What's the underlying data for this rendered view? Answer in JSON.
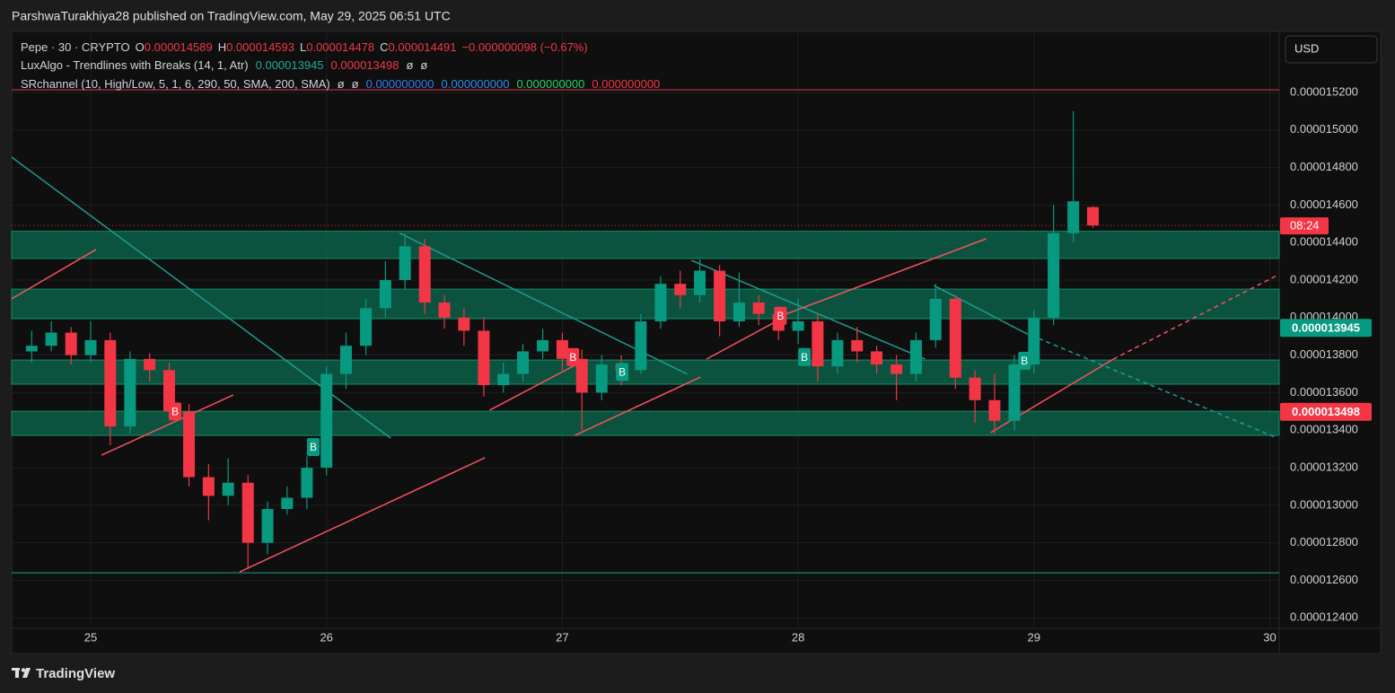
{
  "header": {
    "published": "ParshwaTurakhiya28 published on TradingView.com, May 29, 2025 06:51 UTC",
    "currency": "USD",
    "brand": "TradingView"
  },
  "legend": {
    "symbol": "Pepe · 30 · CRYPTO",
    "ohlc": [
      {
        "key": "O",
        "value": "0.000014589"
      },
      {
        "key": "H",
        "value": "0.000014593"
      },
      {
        "key": "L",
        "value": "0.000014478"
      },
      {
        "key": "C",
        "value": "0.000014491"
      }
    ],
    "change": "−0.000000098 (−0.67%)",
    "trendlines_name": "LuxAlgo - Trendlines with Breaks (14, 1, Atr)",
    "trendlines_empty": [
      "ø",
      "ø"
    ],
    "sr_name": "SRchannel (10, High/Low, 5, 1, 6, 290, 50, SMA, 200, SMA)",
    "sr_empty": [
      "ø",
      "ø"
    ],
    "sr_values": [
      {
        "text": "0.000000000",
        "color": "#2f7ff0"
      },
      {
        "text": "0.000000000",
        "color": "#2f8cf0"
      },
      {
        "text": "0.000000000",
        "color": "#1fd36b"
      },
      {
        "text": "0.000000000",
        "color": "#f23645"
      }
    ]
  },
  "chart_data": {
    "type": "candlestick",
    "up_color": "#089981",
    "down_color": "#f23645",
    "grid": true,
    "x": [
      24.75,
      24.833,
      24.917,
      25,
      25.083,
      25.167,
      25.25,
      25.333,
      25.417,
      25.5,
      25.583,
      25.667,
      25.75,
      25.833,
      25.917,
      26,
      26.083,
      26.167,
      26.25,
      26.333,
      26.417,
      26.5,
      26.583,
      26.667,
      26.75,
      26.833,
      26.917,
      27,
      27.083,
      27.167,
      27.25,
      27.333,
      27.417,
      27.5,
      27.583,
      27.667,
      27.75,
      27.833,
      27.917,
      28,
      28.083,
      28.167,
      28.25,
      28.333,
      28.417,
      28.5,
      28.583,
      28.667,
      28.75,
      28.833,
      28.917,
      29,
      29.083,
      29.167,
      29.25
    ],
    "open": [
      1.382e-05,
      1.385e-05,
      1.392e-05,
      1.38e-05,
      1.388e-05,
      1.342e-05,
      1.378e-05,
      1.372e-05,
      1.35e-05,
      1.315e-05,
      1.305e-05,
      1.312e-05,
      1.28e-05,
      1.298e-05,
      1.304e-05,
      1.32e-05,
      1.37e-05,
      1.385e-05,
      1.405e-05,
      1.42e-05,
      1.438e-05,
      1.408e-05,
      1.4e-05,
      1.393e-05,
      1.364e-05,
      1.37e-05,
      1.382e-05,
      1.388e-05,
      1.378e-05,
      1.36e-05,
      1.375e-05,
      1.372e-05,
      1.398e-05,
      1.418e-05,
      1.412e-05,
      1.425e-05,
      1.398e-05,
      1.408e-05,
      1.402e-05,
      1.393e-05,
      1.398e-05,
      1.374e-05,
      1.388e-05,
      1.382e-05,
      1.375e-05,
      1.37e-05,
      1.388e-05,
      1.41e-05,
      1.368e-05,
      1.356e-05,
      1.345e-05,
      1.375e-05,
      1.4e-05,
      1.445e-05,
      1.4589e-05
    ],
    "high": [
      1.393e-05,
      1.398e-05,
      1.395e-05,
      1.398e-05,
      1.392e-05,
      1.382e-05,
      1.381e-05,
      1.376e-05,
      1.354e-05,
      1.322e-05,
      1.325e-05,
      1.316e-05,
      1.302e-05,
      1.31e-05,
      1.326e-05,
      1.374e-05,
      1.392e-05,
      1.41e-05,
      1.43e-05,
      1.445e-05,
      1.442e-05,
      1.412e-05,
      1.405e-05,
      1.4e-05,
      1.376e-05,
      1.386e-05,
      1.394e-05,
      1.392e-05,
      1.383e-05,
      1.38e-05,
      1.38e-05,
      1.402e-05,
      1.422e-05,
      1.425e-05,
      1.431e-05,
      1.428e-05,
      1.424e-05,
      1.412e-05,
      1.406e-05,
      1.41e-05,
      1.402e-05,
      1.392e-05,
      1.395e-05,
      1.385e-05,
      1.38e-05,
      1.392e-05,
      1.418e-05,
      1.412e-05,
      1.372e-05,
      1.37e-05,
      1.38e-05,
      1.404e-05,
      1.46e-05,
      1.51e-05,
      1.4593e-05
    ],
    "low": [
      1.376e-05,
      1.382e-05,
      1.375e-05,
      1.376e-05,
      1.332e-05,
      1.338e-05,
      1.366e-05,
      1.346e-05,
      1.31e-05,
      1.292e-05,
      1.3e-05,
      1.266e-05,
      1.274e-05,
      1.295e-05,
      1.298e-05,
      1.316e-05,
      1.362e-05,
      1.38e-05,
      1.4e-05,
      1.415e-05,
      1.402e-05,
      1.394e-05,
      1.385e-05,
      1.358e-05,
      1.36e-05,
      1.366e-05,
      1.378e-05,
      1.372e-05,
      1.34e-05,
      1.356e-05,
      1.364e-05,
      1.37e-05,
      1.394e-05,
      1.405e-05,
      1.408e-05,
      1.39e-05,
      1.395e-05,
      1.396e-05,
      1.388e-05,
      1.386e-05,
      1.366e-05,
      1.37e-05,
      1.376e-05,
      1.37e-05,
      1.356e-05,
      1.366e-05,
      1.384e-05,
      1.362e-05,
      1.344e-05,
      1.338e-05,
      1.34e-05,
      1.37e-05,
      1.396e-05,
      1.44e-05,
      1.4478e-05
    ],
    "close": [
      1.385e-05,
      1.392e-05,
      1.38e-05,
      1.388e-05,
      1.342e-05,
      1.378e-05,
      1.372e-05,
      1.35e-05,
      1.315e-05,
      1.305e-05,
      1.312e-05,
      1.28e-05,
      1.298e-05,
      1.304e-05,
      1.32e-05,
      1.37e-05,
      1.385e-05,
      1.405e-05,
      1.42e-05,
      1.438e-05,
      1.408e-05,
      1.4e-05,
      1.393e-05,
      1.364e-05,
      1.37e-05,
      1.382e-05,
      1.388e-05,
      1.378e-05,
      1.36e-05,
      1.375e-05,
      1.372e-05,
      1.398e-05,
      1.418e-05,
      1.412e-05,
      1.425e-05,
      1.398e-05,
      1.408e-05,
      1.402e-05,
      1.393e-05,
      1.398e-05,
      1.374e-05,
      1.388e-05,
      1.382e-05,
      1.375e-05,
      1.37e-05,
      1.388e-05,
      1.41e-05,
      1.368e-05,
      1.356e-05,
      1.345e-05,
      1.375e-05,
      1.4e-05,
      1.445e-05,
      1.462e-05,
      1.4491e-05
    ],
    "xlim": [
      24.665,
      30.04
    ],
    "ylim": [
      1.2344e-05,
      1.5525e-05
    ],
    "xticks": [
      25,
      26,
      27,
      28,
      29,
      30
    ],
    "yticks": [
      {
        "value": 1.52e-05,
        "label": "0.000015200"
      },
      {
        "value": 1.5e-05,
        "label": "0.000015000"
      },
      {
        "value": 1.48e-05,
        "label": "0.000014800"
      },
      {
        "value": 1.46e-05,
        "label": "0.000014600"
      },
      {
        "value": 1.44e-05,
        "label": "0.000014400"
      },
      {
        "value": 1.42e-05,
        "label": "0.000014200"
      },
      {
        "value": 1.4e-05,
        "label": "0.000014000"
      },
      {
        "value": 1.38e-05,
        "label": "0.000013800"
      },
      {
        "value": 1.36e-05,
        "label": "0.000013600"
      },
      {
        "value": 1.34e-05,
        "label": "0.000013400"
      },
      {
        "value": 1.32e-05,
        "label": "0.000013200"
      },
      {
        "value": 1.3e-05,
        "label": "0.000013000"
      },
      {
        "value": 1.28e-05,
        "label": "0.000012800"
      },
      {
        "value": 1.26e-05,
        "label": "0.000012600"
      },
      {
        "value": 1.24e-05,
        "label": "0.000012400"
      }
    ],
    "zones": [
      {
        "top": 1.446e-05,
        "bottom": 1.4315e-05
      },
      {
        "top": 1.4152e-05,
        "bottom": 1.3994e-05
      },
      {
        "top": 1.3774e-05,
        "bottom": 1.3645e-05
      },
      {
        "top": 1.3501e-05,
        "bottom": 1.3372e-05
      }
    ],
    "zone_color": "#0b6b4f",
    "levels": [
      {
        "value": 1.5214e-05,
        "color": "#b2323c"
      },
      {
        "value": 1.264e-05,
        "color": "#0d8a6a"
      }
    ],
    "trendlines": [
      {
        "x1": 24.665,
        "y1": 1.4855e-05,
        "x2": 26.272,
        "y2": 1.3358e-05,
        "color": "#1f9c92",
        "style": "solid"
      },
      {
        "x1": 26.31,
        "y1": 1.445e-05,
        "x2": 27.529,
        "y2": 1.3699e-05,
        "color": "#1f9c92",
        "style": "solid"
      },
      {
        "x1": 27.548,
        "y1": 1.4305e-05,
        "x2": 28.538,
        "y2": 1.3779e-05,
        "color": "#1f9c92",
        "style": "solid"
      },
      {
        "x1": 28.576,
        "y1": 1.4171e-05,
        "x2": 28.957,
        "y2": 1.3922e-05,
        "color": "#1f9c92",
        "style": "solid"
      },
      {
        "x1": 28.957,
        "y1": 1.3922e-05,
        "x2": 30.023,
        "y2": 1.3363e-05,
        "color": "#1f9c92",
        "style": "dashed"
      },
      {
        "x1": 24.665,
        "y1": 1.41e-05,
        "x2": 25.023,
        "y2": 1.4363e-05,
        "color": "#f7525f",
        "style": "solid"
      },
      {
        "x1": 25.046,
        "y1": 1.3267e-05,
        "x2": 25.605,
        "y2": 1.3588e-05,
        "color": "#f7525f",
        "style": "solid"
      },
      {
        "x1": 25.632,
        "y1": 1.2645e-05,
        "x2": 26.672,
        "y2": 1.3253e-05,
        "color": "#f7525f",
        "style": "solid"
      },
      {
        "x1": 26.691,
        "y1": 1.3506e-05,
        "x2": 27.053,
        "y2": 1.3746e-05,
        "color": "#f7525f",
        "style": "solid"
      },
      {
        "x1": 27.053,
        "y1": 1.3372e-05,
        "x2": 27.586,
        "y2": 1.3683e-05,
        "color": "#f7525f",
        "style": "solid"
      },
      {
        "x1": 27.612,
        "y1": 1.3779e-05,
        "x2": 27.928,
        "y2": 1.3994e-05,
        "color": "#f7525f",
        "style": "solid"
      },
      {
        "x1": 27.928,
        "y1": 1.4009e-05,
        "x2": 28.797,
        "y2": 1.442e-05,
        "color": "#f7525f",
        "style": "solid"
      },
      {
        "x1": 28.816,
        "y1": 1.3387e-05,
        "x2": 29.337,
        "y2": 1.3779e-05,
        "color": "#f7525f",
        "style": "solid"
      },
      {
        "x1": 29.337,
        "y1": 1.3779e-05,
        "x2": 30.03,
        "y2": 1.4224e-05,
        "color": "#f7525f",
        "style": "dashed"
      }
    ],
    "markers": [
      {
        "x": 25.358,
        "y": 1.35e-05,
        "label": "B",
        "color": "#f23645"
      },
      {
        "x": 25.944,
        "y": 1.331e-05,
        "label": "B",
        "color": "#089981"
      },
      {
        "x": 27.045,
        "y": 1.379e-05,
        "label": "B",
        "color": "#f23645"
      },
      {
        "x": 27.254,
        "y": 1.371e-05,
        "label": "B",
        "color": "#089981"
      },
      {
        "x": 27.925,
        "y": 1.401e-05,
        "label": "B",
        "color": "#f23645"
      },
      {
        "x": 28.027,
        "y": 1.379e-05,
        "label": "B",
        "color": "#089981"
      },
      {
        "x": 28.96,
        "y": 1.377e-05,
        "label": "B",
        "color": "#089981"
      }
    ],
    "price_labels": [
      1.3945e-05,
      1.3498e-05
    ],
    "price_label_colors": [
      "#089981",
      "#f23645"
    ],
    "countdown": "08:24",
    "countdown_color": "#f23645"
  }
}
